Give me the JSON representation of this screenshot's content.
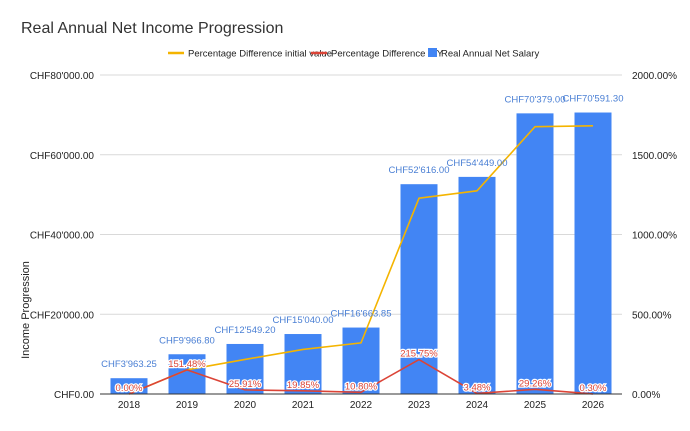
{
  "chart_data": {
    "type": "bar+line",
    "title": "Real Annual Net Income Progression",
    "ylabel": "Income Progression",
    "categories": [
      "2018",
      "2019",
      "2020",
      "2021",
      "2022",
      "2023",
      "2024",
      "2025",
      "2026"
    ],
    "series": [
      {
        "name": "Real Annual Net Salary",
        "kind": "bar",
        "axis": "left",
        "color": "#4285f4",
        "values": [
          3963.25,
          9966.8,
          12549.2,
          15040.0,
          16663.85,
          52616.0,
          54449.0,
          70379.0,
          70591.3
        ],
        "labels": [
          "CHF3'963.25",
          "CHF9'966.80",
          "CHF12'549.20",
          "CHF15'040.00",
          "CHF16'663.85",
          "CHF52'616.00",
          "CHF54'449.00",
          "CHF70'379.00",
          "CHF70'591.30"
        ]
      },
      {
        "name": "Percentage Difference initial value",
        "kind": "line",
        "axis": "right",
        "color": "#f4b400",
        "values": [
          0,
          151.48,
          216.63,
          279.48,
          320.46,
          1227.59,
          1273.84,
          1675.78,
          1681.14
        ]
      },
      {
        "name": "Percentage Difference Y/Y",
        "kind": "line",
        "axis": "right",
        "color": "#db4437",
        "values": [
          0,
          151.48,
          25.91,
          19.85,
          10.8,
          215.75,
          3.48,
          29.26,
          0.3
        ],
        "labels": [
          "0.00%",
          "151.48%",
          "25.91%",
          "19.85%",
          "10.80%",
          "215.75%",
          "3.48%",
          "29.26%",
          "0.30%"
        ]
      }
    ],
    "left_axis": {
      "ylim": [
        0,
        80000
      ],
      "ticks": [
        0,
        20000,
        40000,
        60000,
        80000
      ],
      "tick_labels": [
        "CHF0.00",
        "CHF20'000.00",
        "CHF40'000.00",
        "CHF60'000.00",
        "CHF80'000.00"
      ]
    },
    "right_axis": {
      "ylim": [
        0,
        2000
      ],
      "ticks": [
        0,
        500,
        1000,
        1500,
        2000
      ],
      "tick_labels": [
        "0.00%",
        "500.00%",
        "1000.00%",
        "1500.00%",
        "2000.00%"
      ]
    },
    "legend": {
      "position": "top",
      "order": [
        "Percentage Difference initial value",
        "Percentage Difference Y/Y",
        "Real Annual Net Salary"
      ]
    },
    "grid": true
  }
}
